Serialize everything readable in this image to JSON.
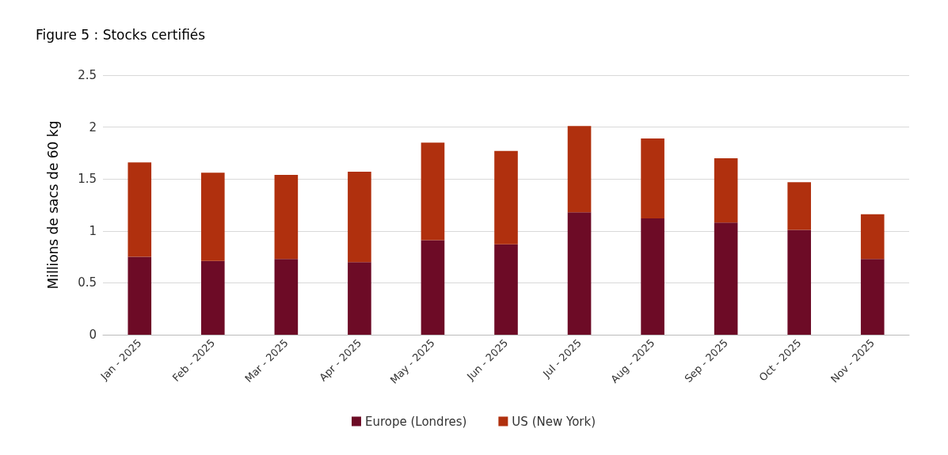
{
  "chart_data": {
    "type": "bar",
    "title": "Figure 5 : Stocks certifiés",
    "ylabel": "Millions de sacs de 60 kg",
    "categories": [
      "Jan - 2025",
      "Feb - 2025",
      "Mar - 2025",
      "Apr - 2025",
      "May - 2025",
      "Jun - 2025",
      "Jul - 2025",
      "Aug - 2025",
      "Sep - 2025",
      "Oct - 2025",
      "Nov - 2025"
    ],
    "series": [
      {
        "name": "Europe (Londres)",
        "color": "#6d0b26",
        "values": [
          0.75,
          0.71,
          0.73,
          0.7,
          0.91,
          0.87,
          1.18,
          1.12,
          1.08,
          1.01,
          0.73
        ]
      },
      {
        "name": "US (New York)",
        "color": "#b0300e",
        "values": [
          0.91,
          0.85,
          0.81,
          0.87,
          0.94,
          0.9,
          0.83,
          0.77,
          0.62,
          0.46,
          0.43
        ]
      }
    ],
    "stacked": true,
    "ylim": [
      0,
      2.5
    ],
    "yticks": [
      0,
      0.5,
      1,
      1.5,
      2,
      2.5
    ],
    "grid": "y",
    "legend": "bottom"
  }
}
